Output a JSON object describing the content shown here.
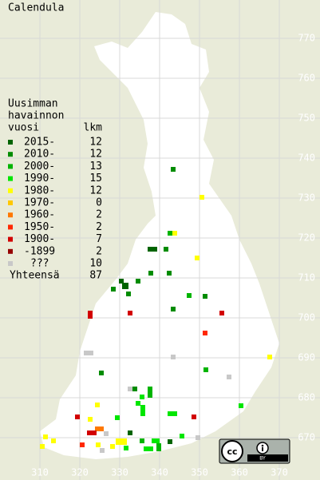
{
  "title": "Calendula",
  "legend": {
    "header": [
      "Uusimman",
      "havainnon",
      "vuosi"
    ],
    "count_header": "lkm",
    "rows": [
      {
        "label": "2015-",
        "count": "12",
        "color": "#006400"
      },
      {
        "label": "2010-",
        "count": "12",
        "color": "#008c00"
      },
      {
        "label": "2000-",
        "count": "13",
        "color": "#00b400"
      },
      {
        "label": "1990-",
        "count": "15",
        "color": "#00e600"
      },
      {
        "label": "1980-",
        "count": "12",
        "color": "#ffff00"
      },
      {
        "label": "1970-",
        "count": "0",
        "color": "#ffc800"
      },
      {
        "label": "1960-",
        "count": "2",
        "color": "#ff7800"
      },
      {
        "label": "1950-",
        "count": "2",
        "color": "#ff2800"
      },
      {
        "label": "1900-",
        "count": "7",
        "color": "#d20000"
      },
      {
        "label": "-1899",
        "count": "2",
        "color": "#960000"
      },
      {
        "label": "???",
        "count": "10",
        "color": "#c8c8c8"
      }
    ],
    "total_label": "Yhteensä",
    "total": "87"
  },
  "y_labels": [
    "770",
    "760",
    "750",
    "740",
    "730",
    "720",
    "710",
    "700",
    "690",
    "680",
    "670"
  ],
  "x_labels": [
    "310",
    "320",
    "330",
    "340",
    "350",
    "360",
    "370"
  ]
}
